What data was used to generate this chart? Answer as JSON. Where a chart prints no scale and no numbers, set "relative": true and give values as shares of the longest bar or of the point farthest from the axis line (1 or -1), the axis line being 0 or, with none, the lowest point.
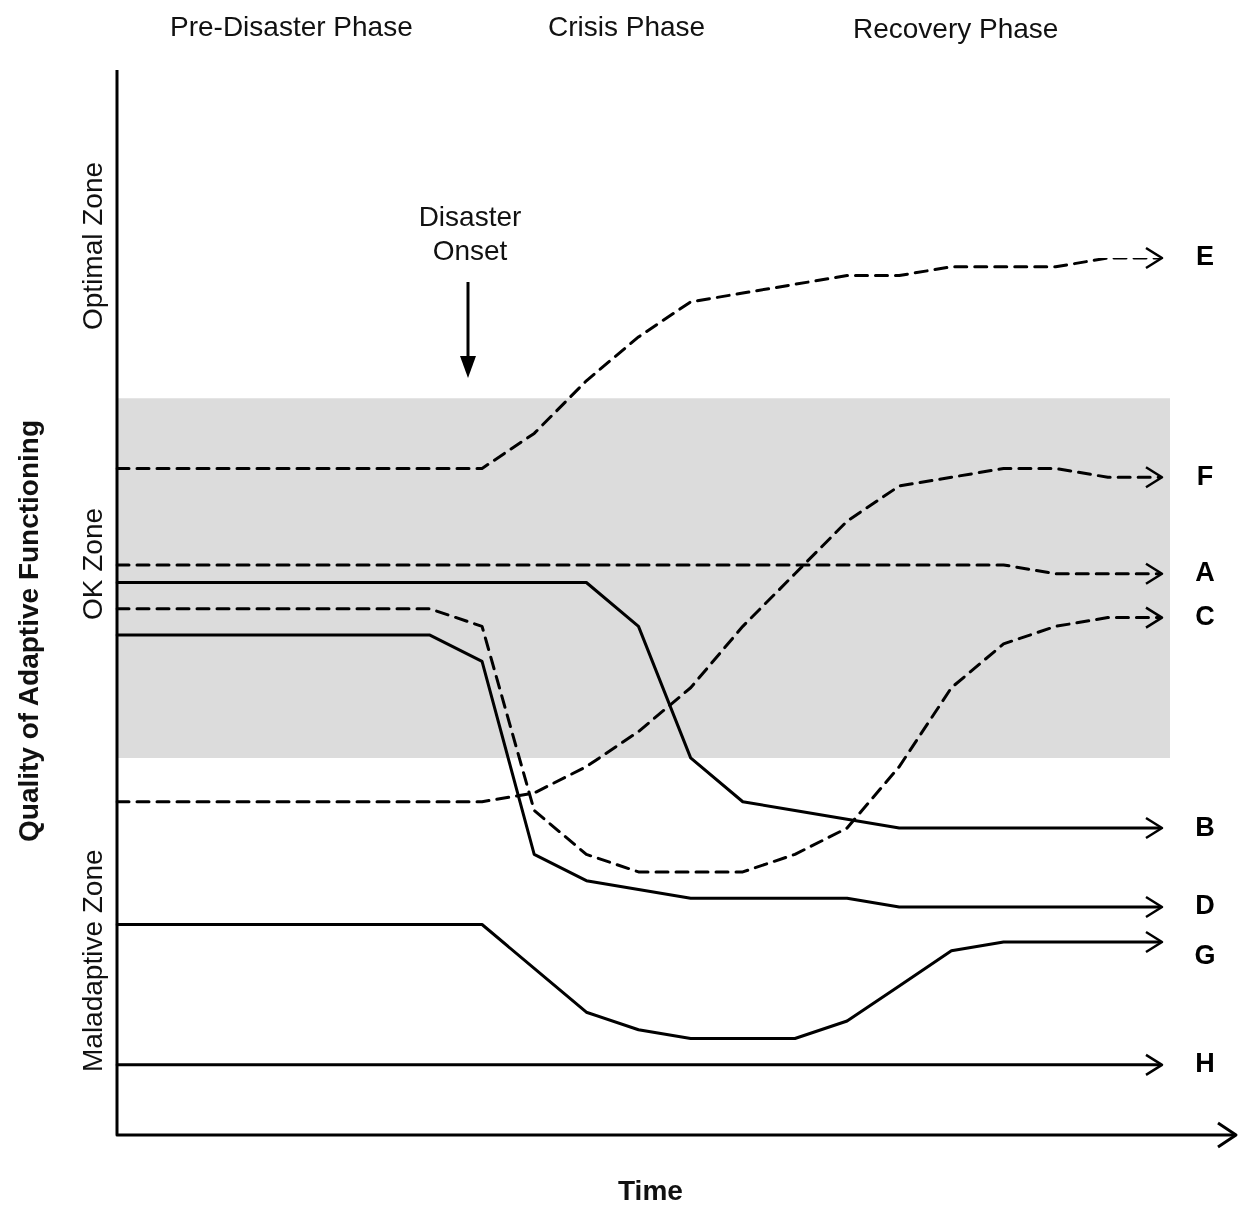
{
  "chart_data": {
    "type": "line",
    "relative": true,
    "xlabel": "Time",
    "ylabel": "Quality of Adaptive Functioning",
    "marker": "none",
    "legend": false,
    "annotations": [
      "Pre-Disaster Phase",
      "Crisis Phase",
      "Recovery Phase",
      "Optimal Zone",
      "OK Zone",
      "Maladaptive Zone",
      "Disaster Onset"
    ],
    "bands": [
      {
        "axis": "y",
        "from": 0.43,
        "to": 0.84,
        "color": "#dcdcdc"
      }
    ],
    "categories": [
      null,
      null,
      null,
      null,
      null,
      null,
      null,
      null,
      null,
      null,
      null,
      null,
      null,
      null,
      null,
      null,
      null,
      null,
      null,
      null,
      null
    ],
    "series": [
      {
        "name": "E",
        "color": "#000000",
        "line_style": "dashed",
        "values": [
          0.76,
          0.76,
          0.76,
          0.76,
          0.76,
          0.76,
          0.76,
          0.76,
          0.8,
          0.86,
          0.91,
          0.95,
          0.96,
          0.97,
          0.98,
          0.98,
          0.99,
          0.99,
          0.99,
          1,
          1
        ]
      },
      {
        "name": "F",
        "color": "#000000",
        "line_style": "dashed",
        "values": [
          0.38,
          0.38,
          0.38,
          0.38,
          0.38,
          0.38,
          0.38,
          0.38,
          0.39,
          0.42,
          0.46,
          0.51,
          0.58,
          0.64,
          0.7,
          0.74,
          0.75,
          0.76,
          0.76,
          0.75,
          0.75
        ]
      },
      {
        "name": "A",
        "color": "#000000",
        "line_style": "dashed",
        "values": [
          0.65,
          0.65,
          0.65,
          0.65,
          0.65,
          0.65,
          0.65,
          0.65,
          0.65,
          0.65,
          0.65,
          0.65,
          0.65,
          0.65,
          0.65,
          0.65,
          0.65,
          0.65,
          0.64,
          0.64,
          0.64
        ]
      },
      {
        "name": "C",
        "color": "#000000",
        "line_style": "dashed",
        "values": [
          0.6,
          0.6,
          0.6,
          0.6,
          0.6,
          0.6,
          0.6,
          0.58,
          0.37,
          0.32,
          0.3,
          0.3,
          0.3,
          0.32,
          0.35,
          0.42,
          0.51,
          0.56,
          0.58,
          0.59,
          0.59
        ]
      },
      {
        "name": "B",
        "color": "#000000",
        "line_style": "solid",
        "values": [
          0.63,
          0.63,
          0.63,
          0.63,
          0.63,
          0.63,
          0.63,
          0.63,
          0.63,
          0.63,
          0.58,
          0.43,
          0.38,
          0.37,
          0.36,
          0.35,
          0.35,
          0.35,
          0.35,
          0.35,
          0.35
        ]
      },
      {
        "name": "D",
        "color": "#000000",
        "line_style": "solid",
        "values": [
          0.57,
          0.57,
          0.57,
          0.57,
          0.57,
          0.57,
          0.57,
          0.54,
          0.32,
          0.29,
          0.28,
          0.27,
          0.27,
          0.27,
          0.27,
          0.26,
          0.26,
          0.26,
          0.26,
          0.26,
          0.26
        ]
      },
      {
        "name": "G",
        "color": "#000000",
        "line_style": "solid",
        "values": [
          0.24,
          0.24,
          0.24,
          0.24,
          0.24,
          0.24,
          0.24,
          0.24,
          0.19,
          0.14,
          0.12,
          0.11,
          0.11,
          0.11,
          0.13,
          0.17,
          0.21,
          0.22,
          0.22,
          0.22,
          0.22
        ]
      },
      {
        "name": "H",
        "color": "#000000",
        "line_style": "solid",
        "values": [
          0.08,
          0.08,
          0.08,
          0.08,
          0.08,
          0.08,
          0.08,
          0.08,
          0.08,
          0.08,
          0.08,
          0.08,
          0.08,
          0.08,
          0.08,
          0.08,
          0.08,
          0.08,
          0.08,
          0.08,
          0.08
        ]
      }
    ]
  }
}
